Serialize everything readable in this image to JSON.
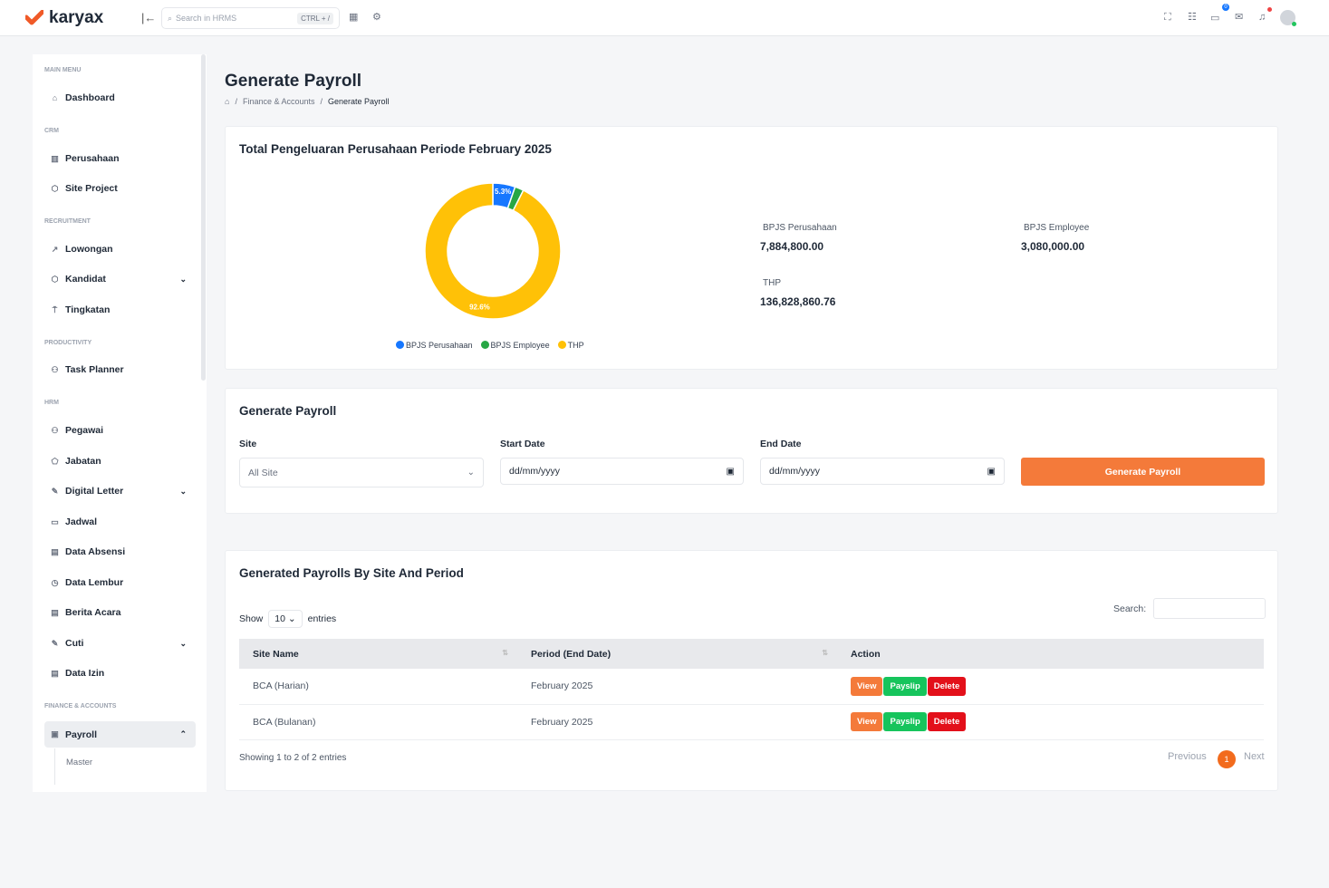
{
  "header": {
    "brand": "karyax",
    "search_placeholder": "Search in HRMS",
    "shortcut": "CTRL + /",
    "chat_badge": "0"
  },
  "sidebar": {
    "sections": [
      {
        "label": "MAIN MENU"
      },
      {
        "label": "CRM"
      },
      {
        "label": "RECRUITMENT"
      },
      {
        "label": "PRODUCTIVITY"
      },
      {
        "label": "HRM"
      },
      {
        "label": "FINANCE & ACCOUNTS"
      }
    ],
    "items": [
      {
        "label": "Dashboard"
      },
      {
        "label": "Perusahaan"
      },
      {
        "label": "Site Project"
      },
      {
        "label": "Lowongan"
      },
      {
        "label": "Kandidat"
      },
      {
        "label": "Tingkatan"
      },
      {
        "label": "Task Planner"
      },
      {
        "label": "Pegawai"
      },
      {
        "label": "Jabatan"
      },
      {
        "label": "Digital Letter"
      },
      {
        "label": "Jadwal"
      },
      {
        "label": "Data Absensi"
      },
      {
        "label": "Data Lembur"
      },
      {
        "label": "Berita Acara"
      },
      {
        "label": "Cuti"
      },
      {
        "label": "Data Izin"
      },
      {
        "label": "Payroll"
      }
    ],
    "sub_items": [
      {
        "label": "Master"
      }
    ]
  },
  "page": {
    "title": "Generate Payroll",
    "breadcrumb": [
      "Finance & Accounts",
      "Generate Payroll"
    ]
  },
  "summary": {
    "title": "Total Pengeluaran Perusahaan Periode February 2025",
    "stats": [
      {
        "label": "BPJS Perusahaan",
        "value": "7,884,800.00"
      },
      {
        "label": "BPJS Employee",
        "value": "3,080,000.00"
      },
      {
        "label": "THP",
        "value": "136,828,860.76"
      }
    ],
    "chart_data": {
      "type": "pie",
      "donut": true,
      "categories": [
        "BPJS Perusahaan",
        "BPJS Employee",
        "THP"
      ],
      "values": [
        7884800.0,
        3080000.0,
        136828860.76
      ],
      "colors": [
        "#1677ff",
        "#28a745",
        "#ffc107"
      ],
      "data_labels": [
        "5.3%",
        "",
        "92.6%"
      ],
      "legend": "bottom"
    }
  },
  "form": {
    "title": "Generate Payroll",
    "site_label": "Site",
    "site_value": "All Site",
    "start_label": "Start Date",
    "start_value": "dd/mm/yyyy",
    "end_label": "End Date",
    "end_value": "dd/mm/yyyy",
    "button": "Generate Payroll"
  },
  "table": {
    "title": "Generated Payrolls By Site And Period",
    "show": "Show",
    "entries_value": "10",
    "entries": "entries",
    "search_label": "Search:",
    "columns": [
      "Site Name",
      "Period (End Date)",
      "Action"
    ],
    "rows": [
      {
        "site": "BCA (Harian)",
        "period": "February 2025"
      },
      {
        "site": "BCA (Bulanan)",
        "period": "February 2025"
      }
    ],
    "actions": {
      "view": "View",
      "payslip": "Payslip",
      "delete": "Delete"
    },
    "info": "Showing 1 to 2 of 2 entries",
    "prev": "Previous",
    "page": "1",
    "next": "Next"
  }
}
